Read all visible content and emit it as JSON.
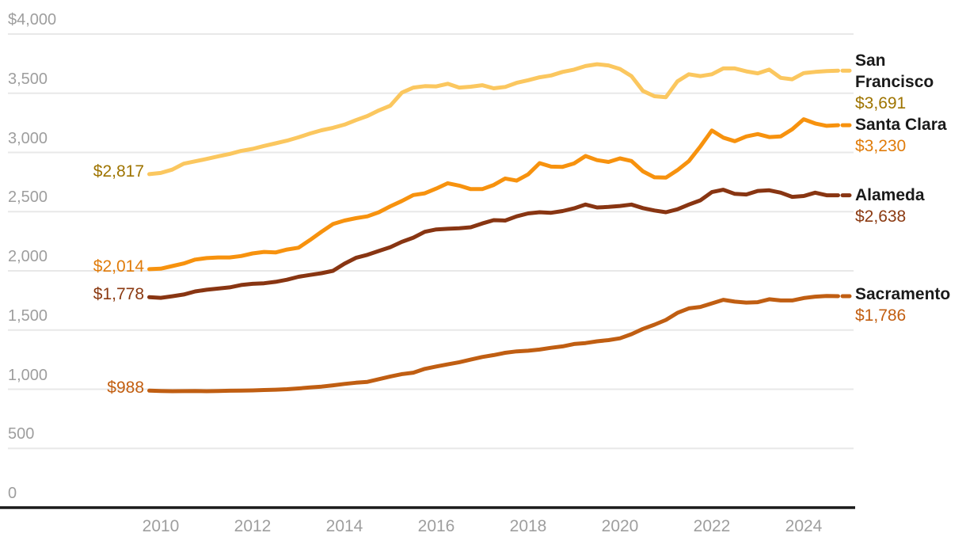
{
  "chart_data": {
    "type": "line",
    "title": "",
    "legend_position": "right-of-lines",
    "grid": true,
    "x_axis": {
      "tick_years": [
        2010,
        2012,
        2014,
        2016,
        2018,
        2020,
        2022,
        2024
      ],
      "tick_labels": [
        "2010",
        "2012",
        "2014",
        "2016",
        "2018",
        "2020",
        "2022",
        "2024"
      ],
      "range": [
        2009.75,
        2025.1
      ]
    },
    "y_axis": {
      "tick_values": [
        0,
        500,
        1000,
        1500,
        2000,
        2500,
        3000,
        3500,
        4000
      ],
      "tick_labels": [
        "0",
        "500",
        "1,000",
        "1,500",
        "2,000",
        "2,500",
        "3,000",
        "3,500",
        "$4,000"
      ],
      "range": [
        0,
        4000
      ]
    },
    "x_start": 2009.75,
    "x_step": 0.25,
    "series": [
      {
        "name": "San Francisco",
        "start_label": "$2,817",
        "end_label": "$3,691",
        "start_value": 2817,
        "end_value": 3691,
        "color": "#FBC75F",
        "label_color": "#9E7400",
        "values": [
          2817,
          2827,
          2855,
          2905,
          2925,
          2945,
          2967,
          2987,
          3013,
          3030,
          3055,
          3077,
          3100,
          3128,
          3160,
          3187,
          3208,
          3235,
          3273,
          3308,
          3355,
          3395,
          3505,
          3548,
          3560,
          3558,
          3580,
          3548,
          3555,
          3568,
          3542,
          3553,
          3588,
          3610,
          3635,
          3650,
          3680,
          3700,
          3730,
          3745,
          3735,
          3705,
          3645,
          3520,
          3475,
          3467,
          3600,
          3660,
          3645,
          3660,
          3710,
          3710,
          3685,
          3668,
          3700,
          3630,
          3618,
          3670,
          3680,
          3687,
          3691
        ]
      },
      {
        "name": "Santa Clara",
        "start_label": "$2,014",
        "end_label": "$3,230",
        "start_value": 2014,
        "end_value": 3230,
        "color": "#F7920E",
        "label_color": "#E07C0B",
        "values": [
          2014,
          2018,
          2040,
          2062,
          2095,
          2108,
          2113,
          2113,
          2125,
          2147,
          2160,
          2155,
          2180,
          2195,
          2260,
          2330,
          2395,
          2425,
          2445,
          2460,
          2495,
          2545,
          2590,
          2640,
          2655,
          2695,
          2740,
          2720,
          2690,
          2690,
          2725,
          2780,
          2762,
          2815,
          2910,
          2880,
          2878,
          2907,
          2970,
          2935,
          2920,
          2950,
          2928,
          2840,
          2790,
          2787,
          2850,
          2927,
          3050,
          3185,
          3125,
          3095,
          3135,
          3155,
          3130,
          3135,
          3195,
          3280,
          3245,
          3225,
          3230
        ]
      },
      {
        "name": "Alameda",
        "start_label": "$1,778",
        "end_label": "$2,638",
        "start_value": 1778,
        "end_value": 2638,
        "color": "#883512",
        "label_color": "#8B3A12",
        "values": [
          1778,
          1772,
          1785,
          1800,
          1826,
          1840,
          1850,
          1860,
          1880,
          1890,
          1895,
          1907,
          1925,
          1950,
          1965,
          1980,
          2000,
          2060,
          2110,
          2135,
          2168,
          2200,
          2245,
          2280,
          2330,
          2350,
          2355,
          2360,
          2368,
          2400,
          2428,
          2425,
          2460,
          2485,
          2495,
          2490,
          2505,
          2528,
          2560,
          2535,
          2540,
          2548,
          2560,
          2530,
          2510,
          2495,
          2520,
          2560,
          2595,
          2665,
          2685,
          2650,
          2645,
          2675,
          2680,
          2660,
          2625,
          2632,
          2660,
          2638,
          2638
        ]
      },
      {
        "name": "Sacramento",
        "start_label": "$988",
        "end_label": "$1,786",
        "start_value": 988,
        "end_value": 1786,
        "color": "#C05E12",
        "label_color": "#C25E10",
        "values": [
          988,
          985,
          983,
          984,
          985,
          983,
          985,
          987,
          988,
          990,
          993,
          996,
          1000,
          1007,
          1015,
          1022,
          1033,
          1045,
          1055,
          1062,
          1085,
          1108,
          1128,
          1140,
          1172,
          1192,
          1210,
          1228,
          1250,
          1272,
          1288,
          1308,
          1320,
          1325,
          1335,
          1350,
          1362,
          1382,
          1390,
          1405,
          1415,
          1430,
          1465,
          1510,
          1545,
          1585,
          1645,
          1683,
          1695,
          1725,
          1755,
          1740,
          1732,
          1735,
          1760,
          1750,
          1750,
          1770,
          1782,
          1788,
          1786
        ]
      }
    ],
    "style_hints": {
      "gridline_color": "#E8E8E8",
      "zero_axis_color": "#1A1A1A",
      "tick_label_color": "#9E9E9E",
      "background": "#FFFFFF"
    }
  }
}
